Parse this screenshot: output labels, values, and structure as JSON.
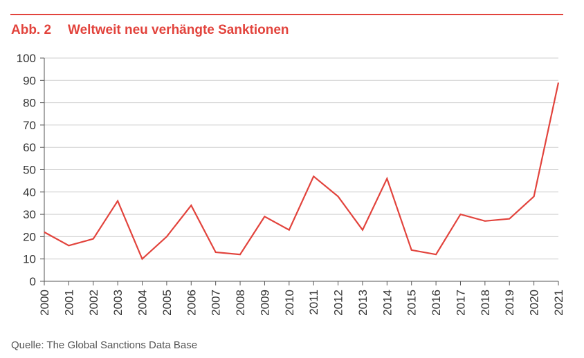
{
  "figure": {
    "number": "Abb. 2",
    "title": "Weltweit neu verhängte Sanktionen",
    "source": "Quelle: The Global Sanctions Data Base"
  },
  "colors": {
    "accent": "#e2433c",
    "grid": "#cfcfcf",
    "axis": "#555555"
  },
  "chart_data": {
    "type": "line",
    "title": "Weltweit neu verhängte Sanktionen",
    "xlabel": "",
    "ylabel": "",
    "ylim": [
      0,
      100
    ],
    "yticks": [
      0,
      10,
      20,
      30,
      40,
      50,
      60,
      70,
      80,
      90,
      100
    ],
    "grid": true,
    "x": [
      "2000",
      "2001",
      "2002",
      "2003",
      "2004",
      "2005",
      "2006",
      "2007",
      "2008",
      "2009",
      "2010",
      "2011",
      "2012",
      "2013",
      "2014",
      "2015",
      "2016",
      "2017",
      "2018",
      "2019",
      "2020",
      "2021"
    ],
    "series": [
      {
        "values": [
          22,
          16,
          19,
          36,
          10,
          20,
          34,
          13,
          12,
          29,
          23,
          47,
          38,
          23,
          46,
          14,
          12,
          30,
          27,
          28,
          38,
          89
        ],
        "color": "#e2433c"
      }
    ]
  }
}
